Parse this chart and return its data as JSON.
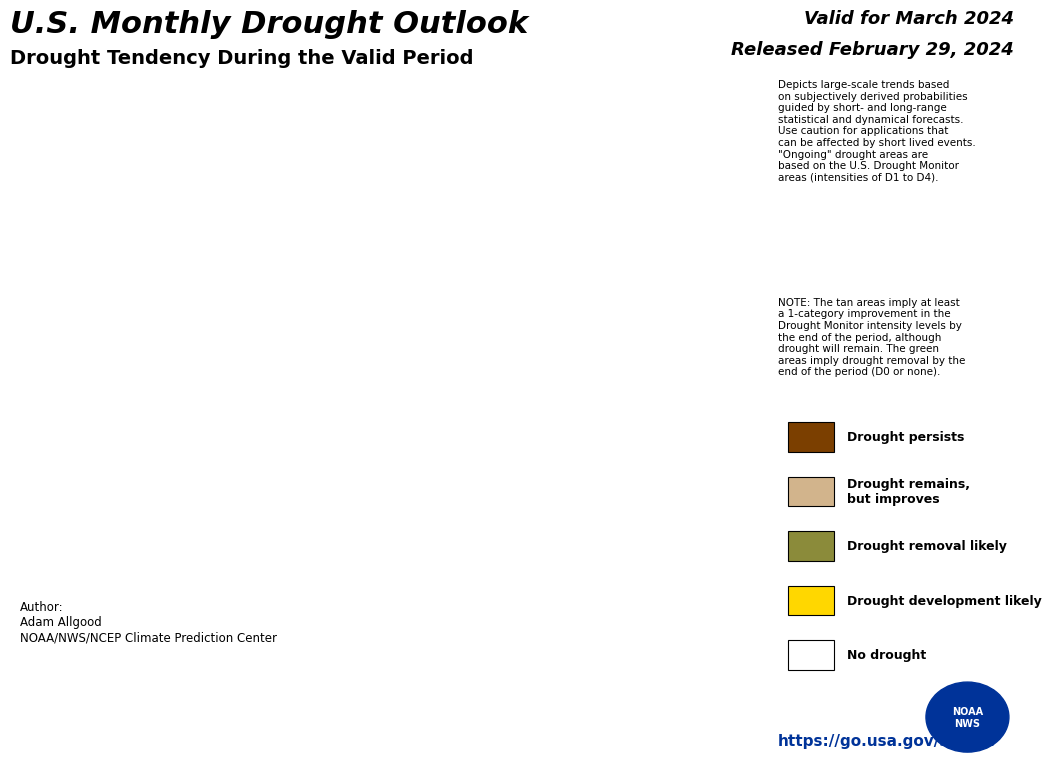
{
  "title_main": "U.S. Monthly Drought Outlook",
  "title_sub": "Drought Tendency During the Valid Period",
  "valid_text": "Valid for March 2024",
  "released_text": "Released February 29, 2024",
  "author_text": "Author:\nAdam Allgood\nNOAA/NWS/NCEP Climate Prediction Center",
  "url_text": "https://go.usa.gov/3eZGd",
  "note_text1": "Depicts large-scale trends based\non subjectively derived probabilities\nguided by short- and long-range\nstatistical and dynamical forecasts.\nUse caution for applications that\ncan be affected by short lived events.\n\"Ongoing\" drought areas are\nbased on the U.S. Drought Monitor\nareas (intensities of D1 to D4).",
  "note_text2": "NOTE: The tan areas imply at least\na 1-category improvement in the\nDrought Monitor intensity levels by\nthe end of the period, although\ndrought will remain. The green\nareas imply drought removal by the\nend of the period (D0 or none).",
  "legend_items": [
    {
      "label": "Drought persists",
      "color": "#7B3F00"
    },
    {
      "label": "Drought remains,\nbut improves",
      "color": "#D2B48C"
    },
    {
      "label": "Drought removal likely",
      "color": "#8B8B3A"
    },
    {
      "label": "Drought development likely",
      "color": "#FFD700"
    },
    {
      "label": "No drought",
      "color": "#FFFFFF"
    }
  ],
  "colors": {
    "drought_persists": "#7B3F00",
    "drought_remains": "#D2B48C",
    "drought_removal": "#8B8B3A",
    "drought_development": "#FFD700",
    "no_drought": "#FFFFFF",
    "water": "#ADD8E6",
    "state_border": "#333333",
    "background": "#FFFFFF"
  },
  "background_color": "#FFFFFF",
  "map_background": "#FFFFFF",
  "border_color": "#000000",
  "figsize": [
    10.24,
    7.78
  ],
  "dpi": 100
}
